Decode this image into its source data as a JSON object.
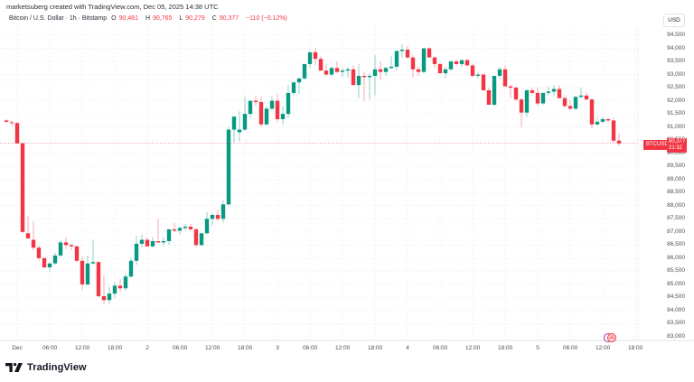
{
  "header": {
    "credit": "marketsuberg created with TradingView.com, Dec 05, 2025 14:38 UTC",
    "symbol_desc": "Bitcoin / U.S. Dollar · 1h · Bitstamp",
    "open_label": "O",
    "open": "90,481",
    "high_label": "H",
    "high": "90,765",
    "low_label": "L",
    "low": "90,279",
    "close_label": "C",
    "close": "90,377",
    "change": "−110 (−0.12%)"
  },
  "price_axis": {
    "currency": "USD",
    "ticks": [
      "94,500",
      "94,000",
      "93,500",
      "93,000",
      "92,500",
      "92,000",
      "91,500",
      "91,000",
      "90,500",
      "90,000",
      "89,500",
      "89,000",
      "88,500",
      "88,000",
      "87,500",
      "87,000",
      "86,500",
      "86,000",
      "85,500",
      "85,000",
      "84,500",
      "84,000",
      "83,500",
      "83,000"
    ]
  },
  "last_price": {
    "symbol": "BTCUSD",
    "price": "90,377",
    "countdown": "21:32"
  },
  "time_axis": {
    "ticks": [
      "Dec",
      "06:00",
      "12:00",
      "18:00",
      "2",
      "06:00",
      "12:00",
      "18:00",
      "3",
      "06:00",
      "12:00",
      "18:00",
      "4",
      "06:00",
      "12:00",
      "18:00",
      "5",
      "06:00",
      "12:00",
      "18:00"
    ]
  },
  "branding": {
    "logo_text": "TradingView"
  },
  "colors": {
    "up": "#089981",
    "down": "#f23645",
    "grid": "#f0f3fa"
  },
  "chart_data": {
    "type": "candlestick",
    "title": "Bitcoin / U.S. Dollar · 1h · Bitstamp",
    "xlabel": "",
    "ylabel": "USD",
    "ylim": [
      83000,
      94500
    ],
    "x_start": "Nov 30 22:00 UTC",
    "interval": "1h",
    "ohlc": [
      [
        91250,
        91300,
        91150,
        91200
      ],
      [
        91180,
        91250,
        91050,
        91150
      ],
      [
        91150,
        91200,
        90350,
        90380
      ],
      [
        90380,
        90400,
        86950,
        87000
      ],
      [
        86950,
        87600,
        86900,
        86750
      ],
      [
        86700,
        87400,
        86300,
        86400
      ],
      [
        86400,
        86500,
        85900,
        86000
      ],
      [
        86000,
        86050,
        85600,
        85650
      ],
      [
        85650,
        85800,
        85500,
        85800
      ],
      [
        85800,
        86200,
        85750,
        86100
      ],
      [
        86100,
        86700,
        86050,
        86600
      ],
      [
        86600,
        86800,
        86350,
        86500
      ],
      [
        86500,
        86550,
        86300,
        86450
      ],
      [
        86450,
        86500,
        85850,
        85900
      ],
      [
        85900,
        86050,
        84800,
        85000
      ],
      [
        85000,
        86100,
        84950,
        85800
      ],
      [
        85800,
        86700,
        85750,
        85850
      ],
      [
        85850,
        85900,
        84500,
        84550
      ],
      [
        84550,
        85350,
        84250,
        84400
      ],
      [
        84400,
        84900,
        84250,
        84650
      ],
      [
        84650,
        85100,
        84500,
        84950
      ],
      [
        84950,
        85200,
        84700,
        84850
      ],
      [
        84850,
        85400,
        84750,
        85300
      ],
      [
        85300,
        86000,
        85250,
        85900
      ],
      [
        85900,
        86850,
        85750,
        86550
      ],
      [
        86550,
        86900,
        86400,
        86700
      ],
      [
        86700,
        86800,
        86450,
        86450
      ],
      [
        86450,
        86800,
        86400,
        86650
      ],
      [
        86650,
        87500,
        86700,
        86600
      ],
      [
        86600,
        86800,
        86450,
        86650
      ],
      [
        86650,
        87100,
        86500,
        87100
      ],
      [
        87100,
        87350,
        87000,
        87050
      ],
      [
        87050,
        87200,
        86900,
        87150
      ],
      [
        87150,
        87300,
        87050,
        87200
      ],
      [
        87200,
        87300,
        87050,
        87100
      ],
      [
        87100,
        87150,
        86400,
        86500
      ],
      [
        86500,
        86950,
        86450,
        86950
      ],
      [
        86950,
        87750,
        86900,
        87500
      ],
      [
        87500,
        87700,
        87250,
        87650
      ],
      [
        87650,
        87850,
        87400,
        87500
      ],
      [
        87500,
        88200,
        87350,
        88050
      ],
      [
        88050,
        91000,
        88000,
        90900
      ],
      [
        90900,
        91150,
        90400,
        91400
      ],
      [
        90800,
        91600,
        90450,
        90900
      ],
      [
        90900,
        92150,
        90850,
        91500
      ],
      [
        91500,
        92000,
        91350,
        92000
      ],
      [
        92000,
        92200,
        91800,
        91950
      ],
      [
        91950,
        92150,
        91000,
        91100
      ],
      [
        91100,
        91800,
        91050,
        91700
      ],
      [
        91700,
        92150,
        91650,
        92000
      ],
      [
        92000,
        92250,
        91200,
        91300
      ],
      [
        91300,
        91800,
        91100,
        91500
      ],
      [
        91500,
        92600,
        91350,
        92300
      ],
      [
        92300,
        92750,
        92200,
        92700
      ],
      [
        92700,
        92900,
        92250,
        92850
      ],
      [
        92850,
        93400,
        92800,
        93400
      ],
      [
        93400,
        93900,
        93250,
        93850
      ],
      [
        93850,
        94000,
        93350,
        93600
      ],
      [
        93600,
        93700,
        93250,
        93150
      ],
      [
        93150,
        93400,
        92950,
        93000
      ],
      [
        93000,
        93300,
        92900,
        93250
      ],
      [
        93250,
        93500,
        93050,
        93100
      ],
      [
        93100,
        93250,
        92900,
        93150
      ],
      [
        93150,
        93300,
        92900,
        93200
      ],
      [
        93200,
        93350,
        92750,
        92600
      ],
      [
        92600,
        93400,
        92100,
        92950
      ],
      [
        92950,
        93100,
        92000,
        92900
      ],
      [
        92900,
        93050,
        92050,
        92950
      ],
      [
        92950,
        93750,
        92200,
        93200
      ],
      [
        93200,
        93500,
        92800,
        93100
      ],
      [
        93100,
        93300,
        92950,
        93250
      ],
      [
        93250,
        93700,
        93200,
        93300
      ],
      [
        93300,
        93900,
        93150,
        93900
      ],
      [
        93900,
        94150,
        93650,
        93950
      ],
      [
        93950,
        94100,
        93600,
        93650
      ],
      [
        93650,
        93750,
        92900,
        93200
      ],
      [
        93200,
        93300,
        92950,
        93100
      ],
      [
        93100,
        94000,
        93050,
        94000
      ],
      [
        94000,
        94050,
        93700,
        93650
      ],
      [
        93650,
        93700,
        93250,
        93400
      ],
      [
        93400,
        93450,
        93050,
        93050
      ],
      [
        93050,
        93300,
        92850,
        93200
      ],
      [
        93200,
        93550,
        93150,
        93500
      ],
      [
        93500,
        93600,
        93350,
        93400
      ],
      [
        93400,
        93550,
        93300,
        93550
      ],
      [
        93550,
        93600,
        93350,
        93350
      ],
      [
        93350,
        93400,
        92900,
        92950
      ],
      [
        92950,
        93100,
        92850,
        93000
      ],
      [
        93000,
        93050,
        92500,
        92400
      ],
      [
        92400,
        92500,
        91850,
        91850
      ],
      [
        91850,
        92850,
        91800,
        92950
      ],
      [
        92950,
        93300,
        92850,
        93200
      ],
      [
        93200,
        93350,
        92600,
        92550
      ],
      [
        92550,
        92600,
        92100,
        92500
      ],
      [
        92500,
        92550,
        92000,
        92050
      ],
      [
        92050,
        92100,
        91000,
        91550
      ],
      [
        91550,
        92450,
        91400,
        92400
      ],
      [
        92400,
        92500,
        92250,
        92300
      ],
      [
        92300,
        92500,
        91800,
        91900
      ],
      [
        91900,
        92300,
        91850,
        92300
      ],
      [
        92300,
        92550,
        92200,
        92350
      ],
      [
        92350,
        92600,
        92200,
        92450
      ],
      [
        92450,
        92600,
        92100,
        92100
      ],
      [
        92100,
        92200,
        91750,
        91800
      ],
      [
        91800,
        92000,
        91650,
        91700
      ],
      [
        91700,
        92200,
        91650,
        92150
      ],
      [
        92150,
        92500,
        92100,
        92200
      ],
      [
        92200,
        92300,
        92050,
        92050
      ],
      [
        92050,
        92100,
        90950,
        91100
      ],
      [
        91100,
        91400,
        91050,
        91200
      ],
      [
        91200,
        91400,
        91150,
        91300
      ],
      [
        91300,
        91350,
        91150,
        91250
      ],
      [
        91250,
        91350,
        90400,
        90480
      ],
      [
        90481,
        90765,
        90279,
        90377
      ]
    ]
  }
}
